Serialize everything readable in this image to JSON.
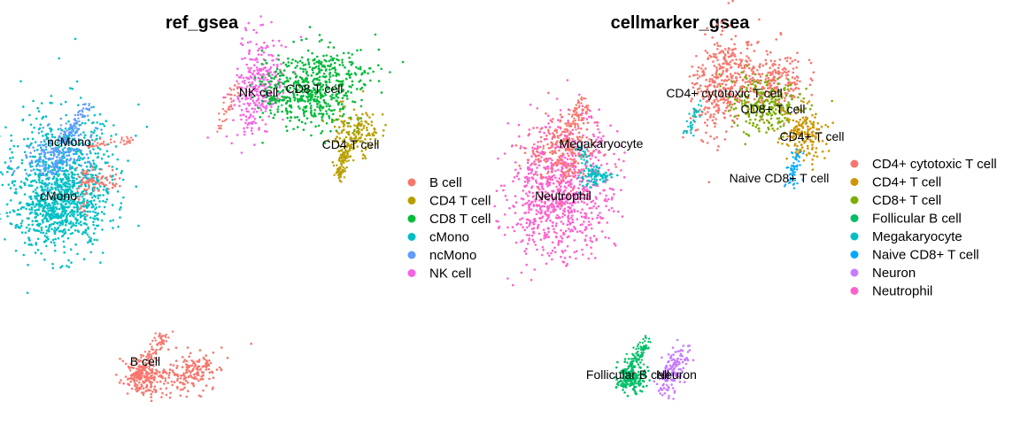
{
  "chart_data": [
    {
      "type": "scatter",
      "title": "ref_gsea",
      "xlabel": "",
      "ylabel": "",
      "axes_visible": false,
      "grid": false,
      "legend_position": "right",
      "legend": [
        {
          "name": "B cell",
          "color": "#F8766D"
        },
        {
          "name": "CD4 T cell",
          "color": "#B79F00"
        },
        {
          "name": "CD8 T cell",
          "color": "#00BA38"
        },
        {
          "name": "cMono",
          "color": "#00BFC4"
        },
        {
          "name": "ncMono",
          "color": "#619CFF"
        },
        {
          "name": "NK cell",
          "color": "#F564E3"
        }
      ],
      "cluster_labels": [
        "NK cell",
        "CD8 T cell",
        "ncMono",
        "CD4 T cell",
        "cMono",
        "B cell"
      ]
    },
    {
      "type": "scatter",
      "title": "cellmarker_gsea",
      "xlabel": "",
      "ylabel": "",
      "axes_visible": false,
      "grid": false,
      "legend_position": "right",
      "legend": [
        {
          "name": "CD4+ cytotoxic T cell",
          "color": "#F8766D"
        },
        {
          "name": "CD4+ T cell",
          "color": "#CD9600"
        },
        {
          "name": "CD8+ T cell",
          "color": "#7CAE00"
        },
        {
          "name": "Follicular B cell",
          "color": "#00BE67"
        },
        {
          "name": "Megakaryocyte",
          "color": "#00BFC4"
        },
        {
          "name": "Naive CD8+ T cell",
          "color": "#00A9FF"
        },
        {
          "name": "Neuron",
          "color": "#C77CFF"
        },
        {
          "name": "Neutrophil",
          "color": "#FF61CC"
        }
      ],
      "cluster_labels": [
        "CD4+ cytotoxic T cell",
        "CD8+ T cell",
        "Megakaryocyte",
        "CD4+ T cell",
        "Naive CD8+ T cell",
        "Neutrophil",
        "Follicular B cell",
        "Neuron"
      ]
    }
  ]
}
